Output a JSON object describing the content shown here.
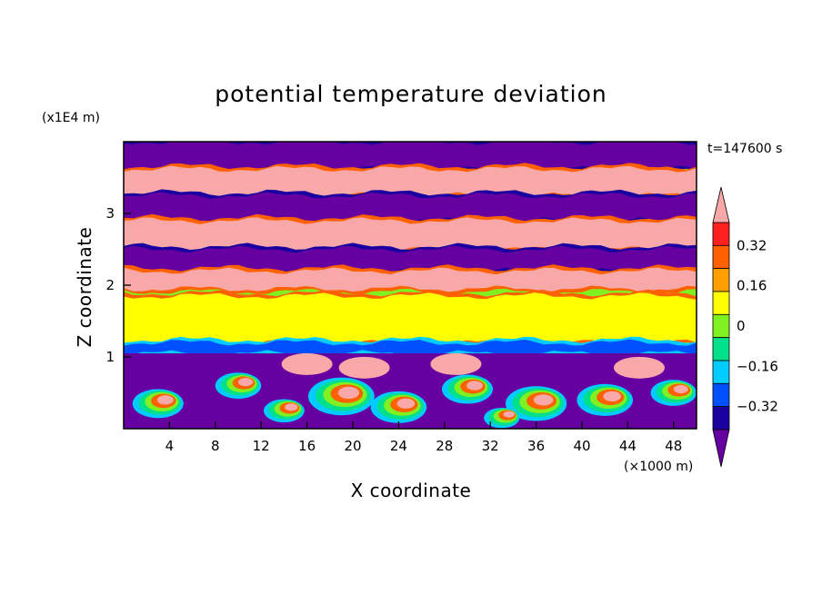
{
  "chart_data": {
    "type": "heatmap",
    "title": "potential temperature deviation",
    "xlabel": "X coordinate",
    "ylabel": "Z coordinate",
    "x_units": "(×1000 m)",
    "y_units": "(x1E4 m)",
    "time_label": "t=147600 s",
    "xlim": [
      0,
      50
    ],
    "ylim": [
      0,
      4
    ],
    "x_ticks": [
      "4",
      "8",
      "12",
      "16",
      "20",
      "24",
      "28",
      "32",
      "36",
      "40",
      "44",
      "48"
    ],
    "y_ticks": [
      "1",
      "2",
      "3"
    ],
    "colorbar": {
      "labels": [
        "0.32",
        "0.16",
        "0",
        "−0.16",
        "−0.32"
      ],
      "label_values": [
        0.32,
        0.16,
        0,
        -0.16,
        -0.32
      ],
      "levels": [
        -0.4,
        -0.32,
        -0.24,
        -0.16,
        -0.08,
        0,
        0.08,
        0.16,
        0.24,
        0.32,
        0.4
      ],
      "colors": [
        "#6600a0",
        "#1a00a0",
        "#0050ff",
        "#00ccff",
        "#00e08a",
        "#80f020",
        "#ffff00",
        "#ffa000",
        "#ff6000",
        "#ff2020",
        "#f8a8a8"
      ]
    },
    "layers": [
      {
        "z_range": [
          3.62,
          4.0
        ],
        "value": -0.4,
        "description_color": "violet"
      },
      {
        "z_range": [
          3.25,
          3.62
        ],
        "value": 0.4
      },
      {
        "z_range": [
          2.9,
          3.25
        ],
        "value": -0.4
      },
      {
        "z_range": [
          2.5,
          2.9
        ],
        "value": 0.4
      },
      {
        "z_range": [
          2.2,
          2.5
        ],
        "value": -0.4
      },
      {
        "z_range": [
          1.95,
          2.2
        ],
        "value": 0.4
      },
      {
        "z_range": [
          1.2,
          1.85
        ],
        "value": 0.04
      },
      {
        "z_range": [
          1.05,
          1.2
        ],
        "value": -0.28
      },
      {
        "z_range": [
          0.0,
          1.05
        ],
        "value": "turbulent mixed"
      }
    ]
  }
}
